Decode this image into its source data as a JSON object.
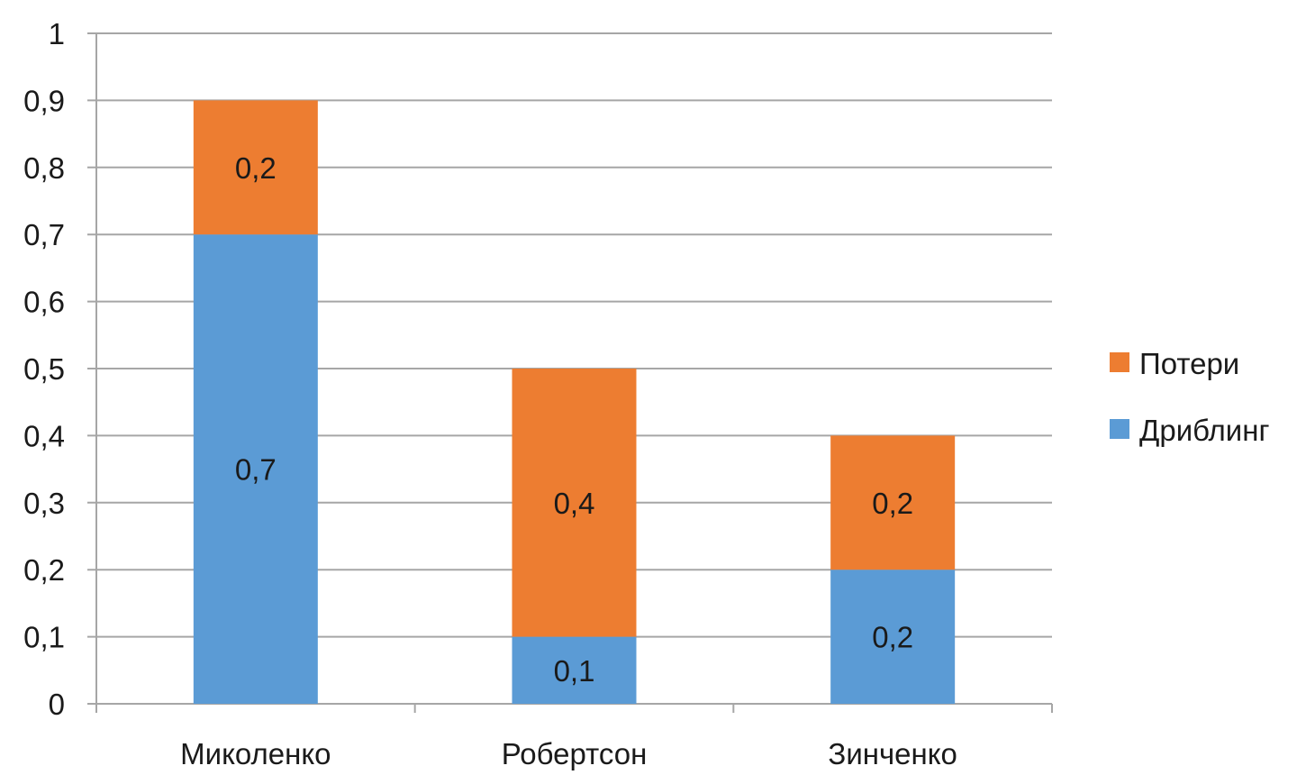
{
  "chart_data": {
    "type": "bar",
    "stacked": true,
    "categories": [
      "Миколенко",
      "Робертсон",
      "Зинченко"
    ],
    "series": [
      {
        "name": "Дриблинг",
        "values": [
          0.7,
          0.1,
          0.2
        ],
        "labels": [
          "0,7",
          "0,1",
          "0,2"
        ],
        "color": "#5b9bd5"
      },
      {
        "name": "Потери",
        "values": [
          0.2,
          0.4,
          0.2
        ],
        "labels": [
          "0,2",
          "0,4",
          "0,2"
        ],
        "color": "#ed7d31"
      }
    ],
    "ylim": [
      0,
      1
    ],
    "yticks": [
      0,
      0.1,
      0.2,
      0.3,
      0.4,
      0.5,
      0.6,
      0.7,
      0.8,
      0.9,
      1
    ],
    "ytick_labels": [
      "0",
      "0,1",
      "0,2",
      "0,3",
      "0,4",
      "0,5",
      "0,6",
      "0,7",
      "0,8",
      "0,9",
      "1"
    ],
    "grid": true,
    "legend": {
      "position": "right",
      "order": [
        "Потери",
        "Дриблинг"
      ]
    },
    "title": "",
    "xlabel": "",
    "ylabel": ""
  }
}
